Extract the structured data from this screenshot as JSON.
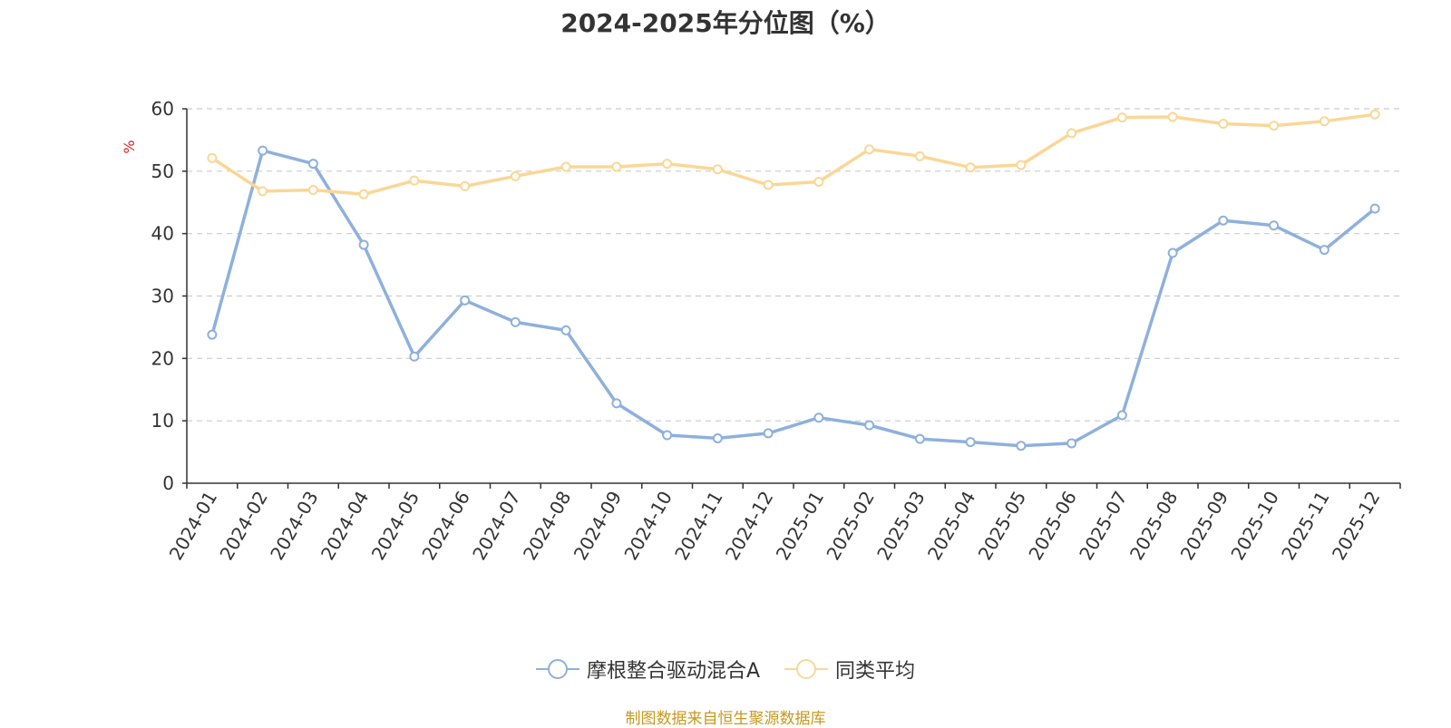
{
  "chart_data": {
    "type": "line",
    "title": "2024-2025年分位图（%）",
    "ylabel": "%",
    "ylim": [
      0,
      60
    ],
    "yticks": [
      0,
      10,
      20,
      30,
      40,
      50,
      60
    ],
    "grid": true,
    "legend_position": "bottom",
    "categories": [
      "2024-01",
      "2024-02",
      "2024-03",
      "2024-04",
      "2024-05",
      "2024-06",
      "2024-07",
      "2024-08",
      "2024-09",
      "2024-10",
      "2024-11",
      "2024-12",
      "2025-01",
      "2025-02",
      "2025-03",
      "2025-04",
      "2025-05",
      "2025-06",
      "2025-07",
      "2025-08",
      "2025-09",
      "2025-10",
      "2025-11",
      "2025-12"
    ],
    "series": [
      {
        "name": "摩根整合驱动混合A",
        "color": "#8eb0dc",
        "values": [
          23.8,
          53.3,
          51.2,
          38.2,
          20.3,
          29.3,
          25.8,
          24.5,
          12.8,
          7.7,
          7.2,
          8.0,
          10.5,
          9.3,
          7.1,
          6.6,
          6.0,
          6.4,
          10.9,
          36.9,
          42.1,
          41.3,
          37.4,
          44.0
        ]
      },
      {
        "name": "同类平均",
        "color": "#fad796",
        "values": [
          52.1,
          46.8,
          47.0,
          46.3,
          48.5,
          47.6,
          49.2,
          50.7,
          50.7,
          51.2,
          50.3,
          47.8,
          48.3,
          53.5,
          52.4,
          50.6,
          51.0,
          56.1,
          58.6,
          58.7,
          57.6,
          57.3,
          58.0,
          59.1
        ]
      }
    ]
  },
  "source_text": "制图数据来自恒生聚源数据库"
}
